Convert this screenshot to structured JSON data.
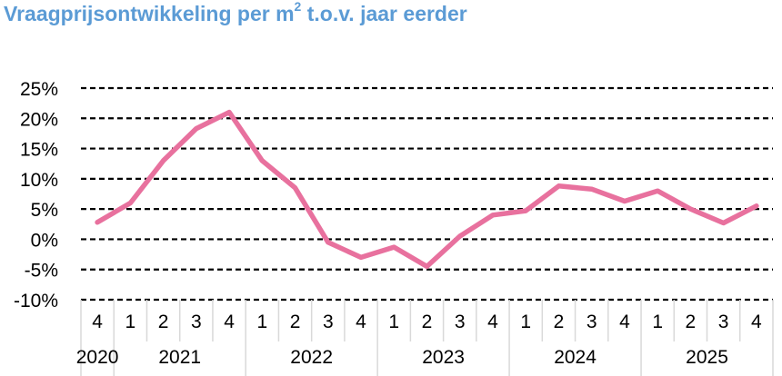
{
  "title": {
    "text": "Vraagprijsontwikkeling per m",
    "superscript": "2",
    "suffix": " t.o.v. jaar eerder",
    "color": "#5b9bd5"
  },
  "chart_data": {
    "type": "line",
    "title": "Vraagprijsontwikkeling per m² t.o.v. jaar eerder",
    "xlabel": "",
    "ylabel": "",
    "ylim": [
      -10,
      25
    ],
    "yticks": [
      "25%",
      "20%",
      "15%",
      "10%",
      "5%",
      "0%",
      "-5%",
      "-10%"
    ],
    "ytick_values": [
      25,
      20,
      15,
      10,
      5,
      0,
      -5,
      -10
    ],
    "grid": "horizontal dashed",
    "x_quarters": [
      "4",
      "1",
      "2",
      "3",
      "4",
      "1",
      "2",
      "3",
      "4",
      "1",
      "2",
      "3",
      "4",
      "1",
      "2",
      "3",
      "4",
      "1",
      "2",
      "3",
      "4"
    ],
    "x_years": [
      {
        "label": "2020",
        "span": 1
      },
      {
        "label": "2021",
        "span": 4
      },
      {
        "label": "2022",
        "span": 4
      },
      {
        "label": "2023",
        "span": 4
      },
      {
        "label": "2024",
        "span": 4
      },
      {
        "label": "2025",
        "span": 4
      }
    ],
    "series": [
      {
        "color": "#e8719e",
        "values": [
          2.8,
          6.0,
          13.0,
          18.3,
          21.0,
          13.0,
          8.5,
          -0.5,
          -3.0,
          -1.3,
          -4.5,
          0.5,
          4.0,
          4.7,
          8.8,
          8.3,
          6.3,
          8.0,
          5.0,
          2.7,
          5.5
        ]
      }
    ]
  }
}
